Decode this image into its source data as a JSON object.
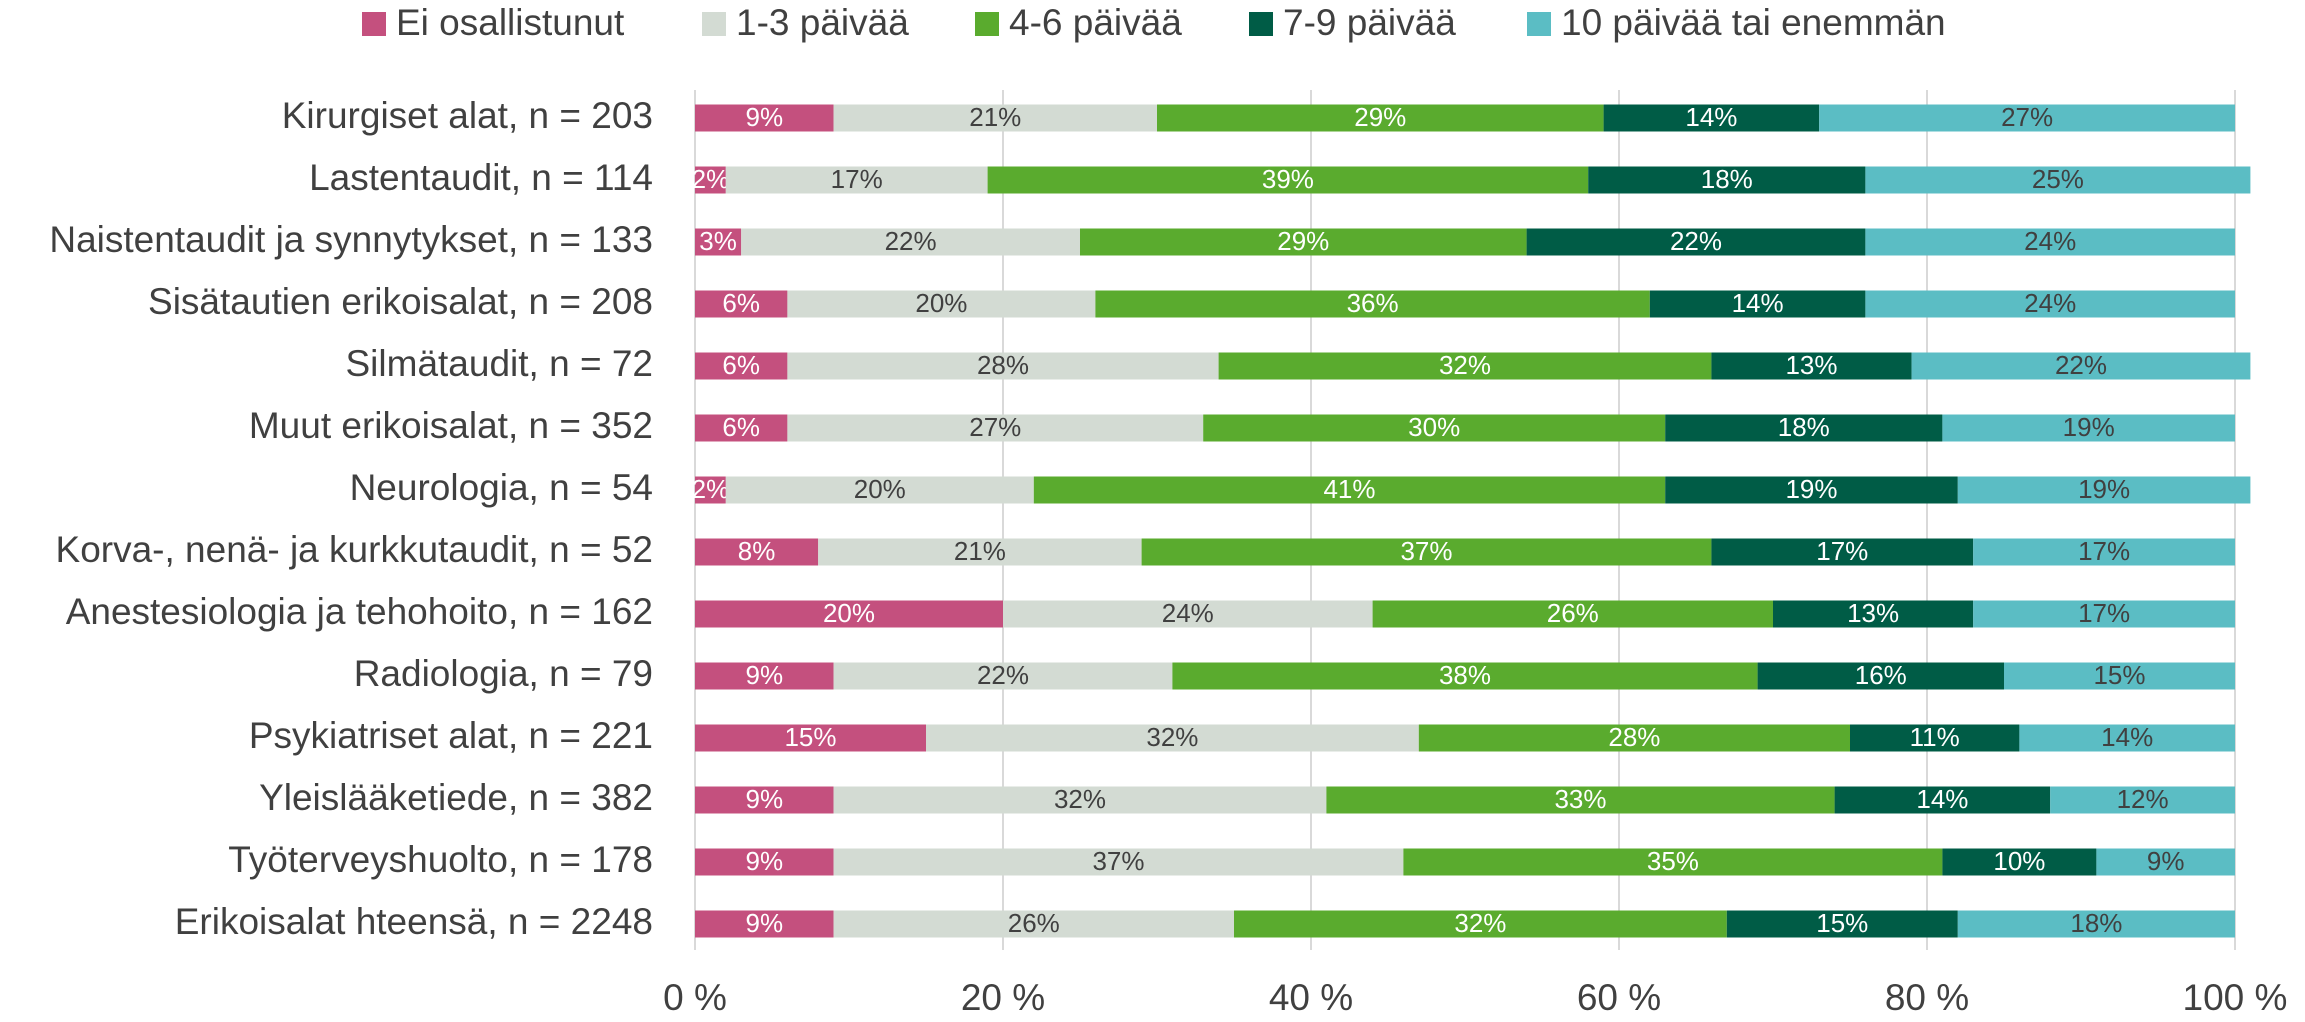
{
  "chart_data": {
    "type": "stacked_bar_horizontal",
    "categories": [
      "Kirurgiset alat, n = 203",
      "Lastentaudit, n = 114",
      "Naistentaudit ja synnytykset, n = 133",
      "Sisätautien erikoisalat, n = 208",
      "Silmätaudit, n = 72",
      "Muut erikoisalat, n = 352",
      "Neurologia, n = 54",
      "Korva-, nenä- ja kurkkutaudit, n = 52",
      "Anestesiologia ja tehohoito, n = 162",
      "Radiologia, n = 79",
      "Psykiatriset alat, n = 221",
      "Yleislääketiede, n = 382",
      "Työterveyshuolto, n = 178",
      "Erikoisalat hteensä, n = 2248"
    ],
    "series": [
      {
        "name": "Ei osallistunut",
        "color": "#c4507e",
        "values": [
          9,
          2,
          3,
          6,
          6,
          6,
          2,
          8,
          20,
          9,
          15,
          9,
          9,
          9
        ],
        "value_labels": [
          "9%",
          "2%",
          "3%",
          "6%",
          "6%",
          "6%",
          "2%",
          "8%",
          "20%",
          "9%",
          "15%",
          "9%",
          "9%",
          "9%"
        ]
      },
      {
        "name": "1-3 päivää",
        "color": "#d3dbd3",
        "values": [
          21,
          17,
          22,
          20,
          28,
          27,
          20,
          21,
          24,
          22,
          32,
          32,
          37,
          26
        ],
        "value_labels": [
          "21%",
          "17%",
          "22%",
          "20%",
          "28%",
          "27%",
          "20%",
          "21%",
          "24%",
          "22%",
          "32%",
          "32%",
          "37%",
          "26%"
        ]
      },
      {
        "name": "4-6 päivää",
        "color": "#5aab2e",
        "values": [
          29,
          39,
          29,
          36,
          32,
          30,
          41,
          37,
          26,
          38,
          28,
          33,
          35,
          32
        ],
        "value_labels": [
          "29%",
          "39%",
          "29%",
          "36%",
          "32%",
          "30%",
          "41%",
          "37%",
          "26%",
          "38%",
          "28%",
          "33%",
          "35%",
          "32%"
        ]
      },
      {
        "name": "7-9 päivää",
        "color": "#005c46",
        "values": [
          14,
          18,
          22,
          14,
          13,
          18,
          19,
          17,
          13,
          16,
          11,
          14,
          10,
          15
        ],
        "value_labels": [
          "14%",
          "18%",
          "22%",
          "14%",
          "13%",
          "18%",
          "19%",
          "17%",
          "13%",
          "16%",
          "11%",
          "14%",
          "10%",
          "15%"
        ]
      },
      {
        "name": "10 päivää tai enemmän",
        "color": "#5bbdc4",
        "values": [
          27,
          25,
          24,
          24,
          22,
          19,
          19,
          17,
          17,
          15,
          14,
          12,
          9,
          18
        ],
        "value_labels": [
          "27%",
          "25%",
          "24%",
          "24%",
          "22%",
          "19%",
          "19%",
          "17%",
          "17%",
          "15%",
          "14%",
          "12%",
          "9%",
          "18%"
        ]
      }
    ],
    "xlim": [
      0,
      100
    ],
    "xticks": [
      {
        "value": 0,
        "label": "0 %"
      },
      {
        "value": 20,
        "label": "20 %"
      },
      {
        "value": 40,
        "label": "40 %"
      },
      {
        "value": 60,
        "label": "60 %"
      },
      {
        "value": 80,
        "label": "80 %"
      },
      {
        "value": 100,
        "label": "100 %"
      }
    ],
    "grid": true,
    "legend": "top"
  }
}
